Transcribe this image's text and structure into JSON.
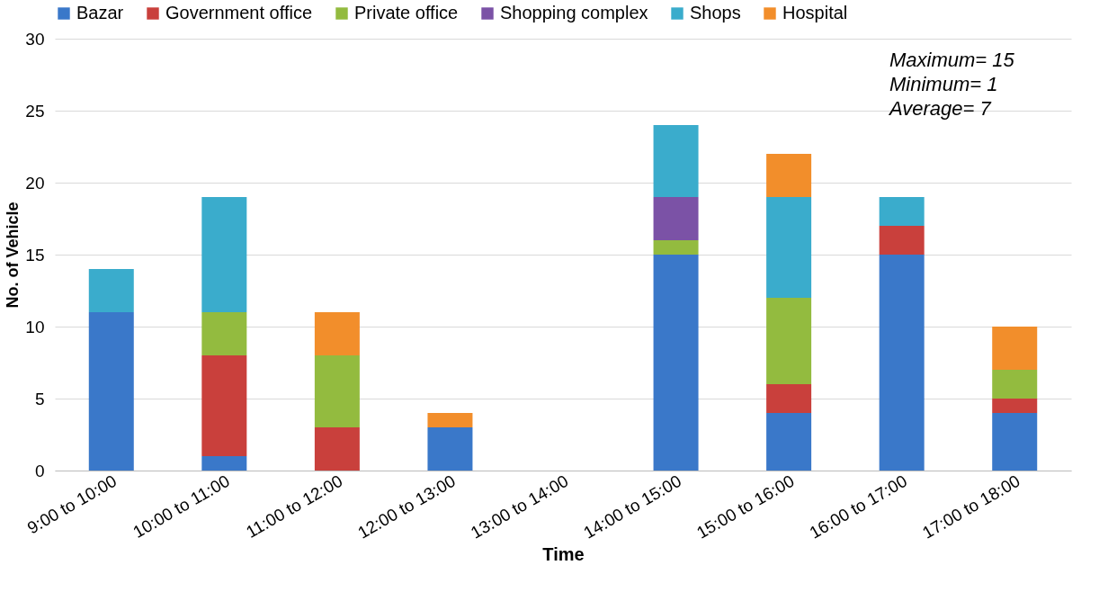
{
  "chart_data": {
    "type": "bar",
    "stacked": true,
    "xlabel": "Time",
    "ylabel": "No. of Vehicle",
    "categories": [
      "9:00 to 10:00",
      "10:00 to 11:00",
      "11:00 to 12:00",
      "12:00 to 13:00",
      "13:00 to 14:00",
      "14:00 to 15:00",
      "15:00 to 16:00",
      "16:00 to 17:00",
      "17:00 to 18:00"
    ],
    "series": [
      {
        "name": "Bazar",
        "color": "#3a78c9",
        "values": [
          11,
          1,
          null,
          3,
          null,
          15,
          4,
          15,
          4
        ]
      },
      {
        "name": "Government office",
        "color": "#c9403c",
        "values": [
          null,
          7,
          3,
          null,
          null,
          null,
          2,
          2,
          1
        ]
      },
      {
        "name": "Private office",
        "color": "#93bb3f",
        "values": [
          null,
          3,
          5,
          null,
          null,
          1,
          6,
          null,
          2
        ]
      },
      {
        "name": "Shopping complex",
        "color": "#7b52a6",
        "values": [
          null,
          null,
          null,
          null,
          null,
          3,
          null,
          null,
          null
        ]
      },
      {
        "name": "Shops",
        "color": "#3aaccc",
        "values": [
          3,
          8,
          null,
          null,
          null,
          5,
          7,
          2,
          null
        ]
      },
      {
        "name": "Hospital",
        "color": "#f28e2b",
        "values": [
          null,
          null,
          3,
          1,
          null,
          null,
          3,
          null,
          3
        ]
      }
    ],
    "ylim": [
      0,
      30
    ],
    "yticks": [
      0,
      5,
      10,
      15,
      20,
      25,
      30
    ],
    "grid": "y",
    "legend": "top",
    "annotations": [
      "Maximum= 15",
      "Minimum= 1",
      "Average= 7"
    ]
  }
}
